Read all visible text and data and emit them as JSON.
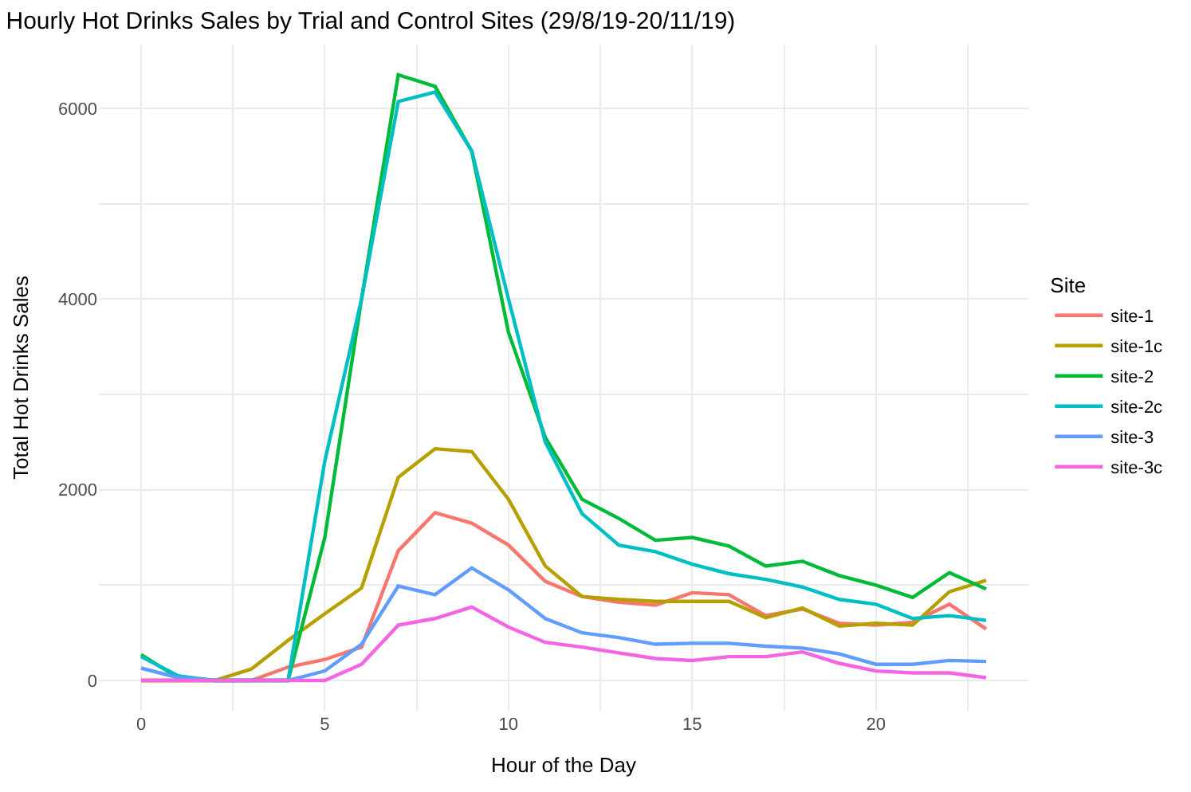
{
  "chart_data": {
    "type": "line",
    "title": "Hourly Hot Drinks Sales by Trial and Control Sites (29/8/19-20/11/19)",
    "xlabel": "Hour of the Day",
    "ylabel": "Total Hot Drinks Sales",
    "legend_title": "Site",
    "legend": "right",
    "grid": true,
    "marker": "none",
    "line_style": "solid",
    "x": [
      0,
      1,
      2,
      3,
      4,
      5,
      6,
      7,
      8,
      9,
      10,
      11,
      12,
      13,
      14,
      15,
      16,
      17,
      18,
      19,
      20,
      21,
      22,
      23
    ],
    "xlim": [
      -1.15,
      24.15
    ],
    "ylim": [
      -317,
      6667
    ],
    "xticks": [
      0,
      {
        "value": 2.5,
        "label": null
      },
      5,
      {
        "value": 7.5,
        "label": null
      },
      10,
      {
        "value": 12.5,
        "label": null
      },
      15,
      {
        "value": 17.5,
        "label": null
      },
      20,
      {
        "value": 22.5,
        "label": null
      }
    ],
    "yticks": [
      0,
      {
        "value": 1000,
        "label": null
      },
      2000,
      {
        "value": 3000,
        "label": null
      },
      4000,
      {
        "value": 5000,
        "label": null
      },
      6000
    ],
    "series": [
      {
        "name": "site-1",
        "color": "#f8766d",
        "values": [
          0,
          0,
          0,
          0,
          140,
          220,
          350,
          1360,
          1760,
          1650,
          1420,
          1040,
          880,
          820,
          790,
          920,
          900,
          680,
          750,
          600,
          580,
          610,
          800,
          540
        ]
      },
      {
        "name": "site-1c",
        "color": "#b79f00",
        "values": [
          0,
          0,
          0,
          120,
          420,
          700,
          970,
          2130,
          2430,
          2400,
          1900,
          1200,
          880,
          850,
          830,
          830,
          830,
          660,
          760,
          570,
          600,
          580,
          930,
          1050
        ]
      },
      {
        "name": "site-2",
        "color": "#00ba38",
        "values": [
          270,
          30,
          0,
          0,
          0,
          1500,
          4000,
          6350,
          6230,
          5550,
          3650,
          2550,
          1900,
          1700,
          1470,
          1500,
          1410,
          1200,
          1250,
          1100,
          1000,
          870,
          1130,
          960
        ]
      },
      {
        "name": "site-2c",
        "color": "#00bfc4",
        "values": [
          250,
          50,
          0,
          0,
          0,
          2300,
          4000,
          6070,
          6170,
          5550,
          4000,
          2500,
          1750,
          1420,
          1350,
          1220,
          1120,
          1060,
          980,
          850,
          800,
          650,
          680,
          630
        ]
      },
      {
        "name": "site-3",
        "color": "#619cff",
        "values": [
          130,
          30,
          0,
          0,
          0,
          100,
          380,
          990,
          900,
          1180,
          950,
          650,
          500,
          450,
          380,
          390,
          390,
          360,
          340,
          280,
          170,
          170,
          210,
          200
        ]
      },
      {
        "name": "site-3c",
        "color": "#f564e3",
        "values": [
          0,
          0,
          0,
          0,
          0,
          0,
          170,
          580,
          650,
          770,
          560,
          400,
          350,
          290,
          230,
          210,
          250,
          250,
          300,
          180,
          100,
          80,
          80,
          30
        ]
      }
    ]
  }
}
